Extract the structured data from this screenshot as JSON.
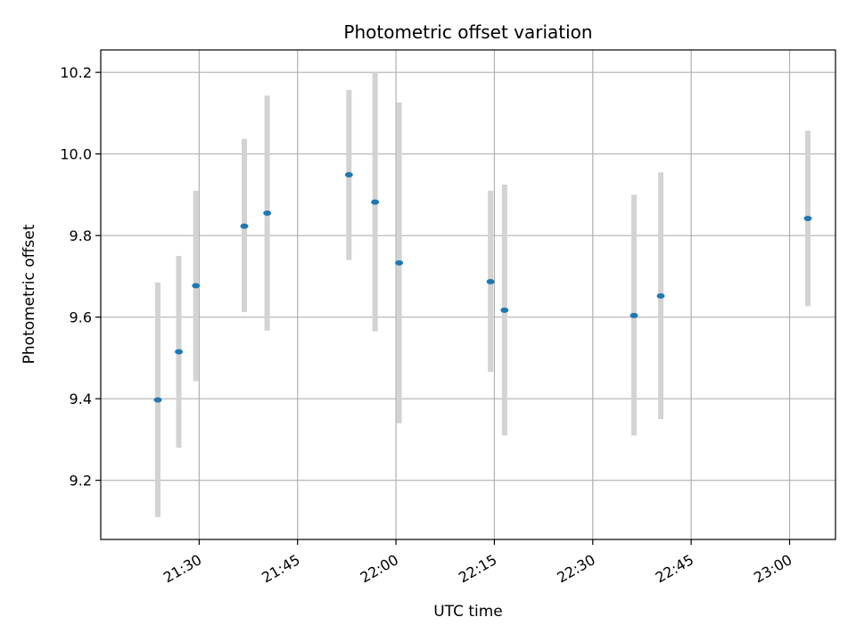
{
  "chart_data": {
    "type": "scatter",
    "title": "Photometric offset variation",
    "xlabel": "UTC time",
    "ylabel": "Photometric offset",
    "x_ticks": [
      "21:30",
      "21:45",
      "22:00",
      "22:15",
      "22:30",
      "22:45",
      "23:00"
    ],
    "y_ticks": [
      "9.2",
      "9.4",
      "9.6",
      "9.8",
      "10.0",
      "10.2"
    ],
    "xlim": [
      "21:15",
      "23:07"
    ],
    "ylim": [
      9.055,
      10.255
    ],
    "grid": true,
    "colors": {
      "point": "#1f77b4",
      "errorbar": "#d3d3d3",
      "grid": "#b0b0b0"
    },
    "series": [
      {
        "points": [
          {
            "x": "21:23:42",
            "y": 9.397,
            "yerr_low": 9.11,
            "yerr_high": 9.685
          },
          {
            "x": "21:26:54",
            "y": 9.515,
            "yerr_low": 9.28,
            "yerr_high": 9.75
          },
          {
            "x": "21:29:30",
            "y": 9.677,
            "yerr_low": 9.443,
            "yerr_high": 9.91
          },
          {
            "x": "21:36:53",
            "y": 9.823,
            "yerr_low": 9.612,
            "yerr_high": 10.037
          },
          {
            "x": "21:40:22",
            "y": 9.855,
            "yerr_low": 9.567,
            "yerr_high": 10.143
          },
          {
            "x": "21:52:50",
            "y": 9.949,
            "yerr_low": 9.74,
            "yerr_high": 10.157
          },
          {
            "x": "21:56:49",
            "y": 9.882,
            "yerr_low": 9.565,
            "yerr_high": 10.2
          },
          {
            "x": "22:00:29",
            "y": 9.733,
            "yerr_low": 9.34,
            "yerr_high": 10.126
          },
          {
            "x": "22:14:25",
            "y": 9.687,
            "yerr_low": 9.466,
            "yerr_high": 9.91
          },
          {
            "x": "22:16:33",
            "y": 9.617,
            "yerr_low": 9.31,
            "yerr_high": 9.925
          },
          {
            "x": "22:36:17",
            "y": 9.604,
            "yerr_low": 9.31,
            "yerr_high": 9.9
          },
          {
            "x": "22:40:22",
            "y": 9.652,
            "yerr_low": 9.35,
            "yerr_high": 9.955
          },
          {
            "x": "23:02:47",
            "y": 9.842,
            "yerr_low": 9.627,
            "yerr_high": 10.057
          }
        ]
      }
    ]
  }
}
